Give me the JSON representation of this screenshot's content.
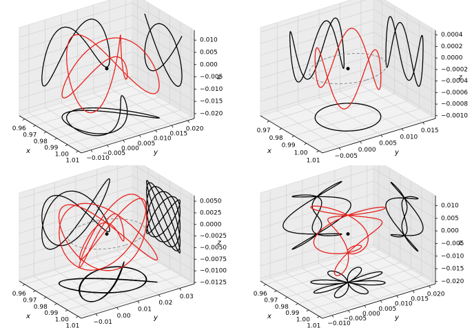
{
  "chart_data": [
    {
      "type": "line3d",
      "xlabel": "x",
      "ylabel": "y",
      "zlabel": "z",
      "xlim": [
        0.955,
        1.013
      ],
      "xticks": [
        0.96,
        0.97,
        0.98,
        0.99,
        {
          "value": 1.0,
          "label": "1.00"
        },
        1.01
      ],
      "ylim": [
        -0.013,
        0.022
      ],
      "yticks": [
        {
          "value": -0.01,
          "label": "−0.010"
        },
        {
          "value": -0.005,
          "label": "−0.005"
        },
        {
          "value": 0,
          "label": "0.000"
        },
        {
          "value": 0.005,
          "label": "0.005"
        },
        {
          "value": 0.01,
          "label": "0.010"
        },
        {
          "value": 0.015,
          "label": "0.015"
        },
        {
          "value": 0.02,
          "label": "0.020"
        }
      ],
      "zlim": [
        -0.022,
        0.014
      ],
      "zticks": [
        {
          "value": 0.01,
          "label": "0.010"
        },
        {
          "value": 0.005,
          "label": "0.005"
        },
        {
          "value": 0,
          "label": "0.000"
        },
        {
          "value": -0.005,
          "label": "−0.005"
        },
        {
          "value": -0.01,
          "label": "−0.010"
        },
        {
          "value": -0.015,
          "label": "−0.015"
        },
        {
          "value": -0.02,
          "label": "−0.020"
        }
      ]
    },
    {
      "type": "line3d",
      "xlabel": "x",
      "ylabel": "y",
      "zlabel": "z",
      "xlim": [
        0.963,
        1.013
      ],
      "xticks": [
        0.97,
        0.98,
        0.99,
        {
          "value": 1.0,
          "label": "1.00"
        },
        1.01
      ],
      "ylim": [
        -0.009,
        0.018
      ],
      "yticks": [
        {
          "value": -0.005,
          "label": "−0.005"
        },
        {
          "value": 0,
          "label": "0.000"
        },
        {
          "value": 0.005,
          "label": "0.005"
        },
        {
          "value": 0.01,
          "label": "0.010"
        },
        {
          "value": 0.015,
          "label": "0.015"
        }
      ],
      "zlim": [
        -0.00105,
        0.00048
      ],
      "zticks": [
        {
          "value": 0.0004,
          "label": "0.0004"
        },
        {
          "value": 0.0002,
          "label": "0.0002"
        },
        {
          "value": 0,
          "label": "0.0000"
        },
        {
          "value": -0.0002,
          "label": "−0.0002"
        },
        {
          "value": -0.0004,
          "label": "−0.0004"
        },
        {
          "value": -0.0006,
          "label": "−0.0006"
        },
        {
          "value": -0.0008,
          "label": "−0.0008"
        },
        {
          "value": -0.001,
          "label": "−0.0010"
        }
      ]
    },
    {
      "type": "line3d",
      "xlabel": "x",
      "ylabel": "y",
      "zlabel": "z",
      "xlim": [
        0.955,
        1.013
      ],
      "xticks": [
        0.96,
        0.97,
        0.98,
        0.99,
        {
          "value": 1.0,
          "label": "1.00"
        },
        1.01
      ],
      "ylim": [
        -0.017,
        0.037
      ],
      "yticks": [
        {
          "value": -0.01,
          "label": "−0.01"
        },
        {
          "value": 0,
          "label": "0.00"
        },
        0.01,
        0.02,
        0.03
      ],
      "zlim": [
        -0.0128,
        0.0062
      ],
      "zticks": [
        {
          "value": 0.005,
          "label": "0.0050"
        },
        {
          "value": 0.0025,
          "label": "0.0025"
        },
        {
          "value": 0,
          "label": "0.0000"
        },
        {
          "value": -0.0025,
          "label": "−0.0025"
        },
        {
          "value": -0.005,
          "label": "−0.0050"
        },
        {
          "value": -0.0075,
          "label": "−0.0075"
        },
        {
          "value": -0.01,
          "label": "−0.0100"
        },
        {
          "value": -0.0125,
          "label": "−0.0125"
        }
      ]
    },
    {
      "type": "line3d",
      "xlabel": "x",
      "ylabel": "y",
      "zlabel": "z",
      "xlim": [
        0.955,
        1.013
      ],
      "xticks": [
        0.96,
        0.97,
        0.98,
        0.99,
        {
          "value": 1.0,
          "label": "1.00"
        },
        1.01
      ],
      "ylim": [
        -0.013,
        0.022
      ],
      "yticks": [
        {
          "value": -0.01,
          "label": "−0.010"
        },
        {
          "value": -0.005,
          "label": "−0.005"
        },
        {
          "value": 0,
          "label": "0.000"
        },
        {
          "value": 0.005,
          "label": "0.005"
        },
        {
          "value": 0.01,
          "label": "0.010"
        },
        {
          "value": 0.015,
          "label": "0.015"
        },
        {
          "value": 0.02,
          "label": "0.020"
        }
      ],
      "zlim": [
        -0.021,
        0.014
      ],
      "zticks": [
        {
          "value": 0.01,
          "label": "0.010"
        },
        {
          "value": 0.005,
          "label": "0.005"
        },
        {
          "value": 0,
          "label": "0.000"
        },
        {
          "value": -0.005,
          "label": "−0.005"
        },
        {
          "value": -0.01,
          "label": "−0.010"
        },
        {
          "value": -0.015,
          "label": "−0.015"
        },
        {
          "value": -0.02,
          "label": "−0.020"
        }
      ]
    }
  ]
}
